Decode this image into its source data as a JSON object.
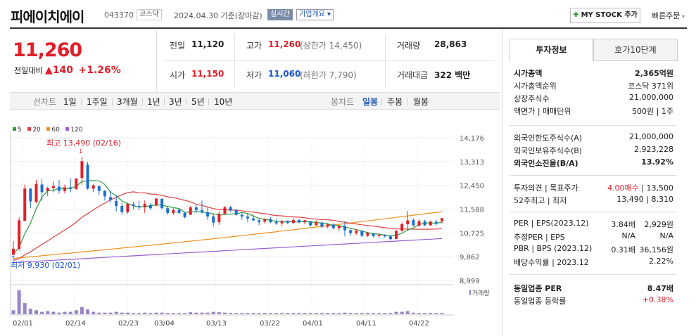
{
  "header": {
    "name": "피에이치에이",
    "code": "043370",
    "market_badge": "코스닥",
    "date_text": "2024.04.30  기준(장마감)",
    "live_badge": "실시간",
    "info_badge": "기업개요 ▾",
    "mystock_label": "MY STOCK 추가",
    "quick_order": "빠른주문"
  },
  "price": {
    "current": "11,260",
    "change_label": "전일대비",
    "change_value": "▲140",
    "change_pct": "+1.26%"
  },
  "summary": {
    "prev_label": "전일",
    "prev": "11,120",
    "high_label": "고가",
    "high": "11,260",
    "upper_limit": "(상한가 14,450)",
    "volume_label": "거래량",
    "volume": "28,863",
    "open_label": "시가",
    "open": "11,150",
    "low_label": "저가",
    "low": "11,060",
    "lower_limit": "(하한가 7,790)",
    "amount_label": "거래대금",
    "amount": "322 백만"
  },
  "toolbar": {
    "line_chart": "선차트",
    "periods": [
      "1일",
      "1주일",
      "3개월",
      "1년",
      "3년",
      "5년",
      "10년"
    ],
    "candle_chart": "봉차트",
    "candle_periods": [
      "일봉",
      "주봉",
      "월봉"
    ]
  },
  "legend": {
    "ma5": "5",
    "ma20": "20",
    "ma60": "60",
    "ma120": "120",
    "colors": {
      "ma5": "#2e9e3e",
      "ma20": "#e04040",
      "ma60": "#f0901a",
      "ma120": "#9a5fcf"
    }
  },
  "chart_data": {
    "type": "candlestick",
    "y_ticks": [
      "14,176",
      "13,313",
      "12,450",
      "11,588",
      "10,725",
      "9,862",
      "8,999"
    ],
    "x_ticks": [
      "02/01",
      "02/14",
      "02/23",
      "03/04",
      "03/13",
      "03/22",
      "04/01",
      "04/11",
      "04/22"
    ],
    "high_annotation": "최고 13,490 (02/16)",
    "low_annotation": "최저 9,930 (02/01)",
    "volume_label": "거래량",
    "candles": [
      [
        9930,
        10420,
        9930,
        10150
      ],
      [
        10150,
        11280,
        10080,
        11180
      ],
      [
        11160,
        12480,
        11150,
        12330
      ],
      [
        12330,
        12350,
        11620,
        11870
      ],
      [
        11850,
        12650,
        11800,
        12500
      ],
      [
        12480,
        12670,
        11900,
        12200
      ],
      [
        12250,
        12400,
        12060,
        12350
      ],
      [
        12350,
        12600,
        12200,
        12420
      ],
      [
        12400,
        12650,
        12150,
        12250
      ],
      [
        12240,
        12480,
        12150,
        12380
      ],
      [
        12380,
        12700,
        12200,
        12320
      ],
      [
        12320,
        12700,
        12290,
        12700
      ],
      [
        12720,
        13490,
        12480,
        13330
      ],
      [
        13200,
        13300,
        12300,
        12330
      ],
      [
        12330,
        12500,
        12200,
        12450
      ],
      [
        12420,
        12450,
        12100,
        12250
      ],
      [
        12250,
        12280,
        11900,
        12050
      ],
      [
        12020,
        12250,
        11820,
        11920
      ],
      [
        11880,
        12100,
        11500,
        11700
      ],
      [
        11700,
        11820,
        11380,
        11480
      ],
      [
        11480,
        11820,
        11420,
        11780
      ],
      [
        11760,
        11850,
        11580,
        11700
      ],
      [
        11700,
        11900,
        11550,
        11650
      ],
      [
        11650,
        11900,
        11450,
        11780
      ],
      [
        11740,
        11800,
        11560,
        11620
      ],
      [
        11720,
        11980,
        11680,
        11970
      ],
      [
        11960,
        11990,
        11580,
        11620
      ],
      [
        11620,
        11700,
        11380,
        11450
      ],
      [
        11450,
        11620,
        11380,
        11550
      ],
      [
        11560,
        11600,
        11400,
        11450
      ],
      [
        11450,
        11500,
        11250,
        11300
      ],
      [
        11380,
        11700,
        11380,
        11650
      ],
      [
        11650,
        11750,
        11450,
        11550
      ],
      [
        11550,
        11900,
        11420,
        11470
      ],
      [
        11470,
        11660,
        11200,
        11320
      ],
      [
        11320,
        11400,
        10950,
        11100
      ],
      [
        11120,
        11500,
        11020,
        11420
      ],
      [
        11420,
        11700,
        11380,
        11650
      ],
      [
        11650,
        11700,
        11480,
        11550
      ],
      [
        11550,
        11600,
        11350,
        11380
      ],
      [
        11380,
        11450,
        11200,
        11320
      ],
      [
        11320,
        11420,
        11120,
        11250
      ],
      [
        11250,
        11380,
        11150,
        11180
      ],
      [
        11180,
        11260,
        11000,
        11120
      ],
      [
        11130,
        11250,
        11060,
        11230
      ],
      [
        11220,
        11300,
        11080,
        11120
      ],
      [
        11120,
        11230,
        11020,
        11070
      ],
      [
        11070,
        11200,
        10980,
        11150
      ],
      [
        11160,
        11180,
        11040,
        11090
      ],
      [
        11090,
        11260,
        11050,
        11190
      ],
      [
        11190,
        11230,
        11070,
        11110
      ],
      [
        11110,
        11200,
        11030,
        11180
      ],
      [
        11150,
        11160,
        10950,
        11000
      ],
      [
        11000,
        11180,
        10980,
        11100
      ],
      [
        11100,
        11150,
        10900,
        10950
      ],
      [
        10950,
        11080,
        10900,
        11030
      ],
      [
        11030,
        11080,
        10850,
        10900
      ],
      [
        10900,
        11000,
        10800,
        10980
      ],
      [
        10980,
        11150,
        10600,
        10820
      ],
      [
        10820,
        10860,
        10620,
        10720
      ],
      [
        10720,
        10870,
        10650,
        10800
      ],
      [
        10800,
        10820,
        10560,
        10620
      ],
      [
        10620,
        10760,
        10580,
        10730
      ],
      [
        10700,
        10720,
        10560,
        10610
      ],
      [
        10610,
        10700,
        10550,
        10650
      ],
      [
        10650,
        10680,
        10550,
        10600
      ],
      [
        10600,
        10630,
        10450,
        10500
      ],
      [
        10500,
        10820,
        10500,
        10800
      ],
      [
        10800,
        11100,
        10770,
        11040
      ],
      [
        11040,
        11520,
        10800,
        11180
      ],
      [
        11190,
        11250,
        10950,
        11000
      ],
      [
        10980,
        11230,
        10980,
        11150
      ],
      [
        11150,
        11200,
        10980,
        11000
      ],
      [
        11000,
        11180,
        10980,
        11130
      ],
      [
        11130,
        11200,
        11000,
        11060
      ],
      [
        11150,
        11260,
        11060,
        11260
      ]
    ],
    "volumes": [
      5,
      30,
      14,
      7,
      5,
      3,
      4,
      3,
      2,
      3,
      3,
      5,
      9,
      6,
      3,
      2,
      2,
      2,
      3,
      2,
      2,
      1.5,
      1.5,
      2,
      1.5,
      2,
      2,
      1.5,
      1.5,
      1.5,
      1.5,
      2.5,
      2,
      2,
      2,
      3,
      2.5,
      2,
      1.5,
      1.5,
      1.5,
      1.5,
      1.5,
      1.5,
      1.5,
      1.5,
      1.5,
      1.5,
      1.5,
      1.5,
      1.5,
      1.5,
      1.5,
      1.5,
      1.5,
      1.5,
      1.5,
      1.5,
      2,
      1.5,
      1.5,
      1.5,
      1.5,
      1.5,
      1.5,
      1.5,
      1.5,
      3,
      3,
      4,
      2,
      1.5,
      1.5,
      1.5,
      1.5,
      1.5
    ],
    "ylim": [
      8999,
      14176
    ]
  },
  "investment": {
    "tab_active": "투자정보",
    "tab_other": "호가10단계",
    "rows1": [
      {
        "label": "시가총액",
        "value": "2,365억원"
      },
      {
        "label": "시가총액순위",
        "value": "코스닥 371위"
      },
      {
        "label": "상장주식수",
        "value": "21,000,000"
      },
      {
        "label": "액면가 | 매매단위",
        "value": "500원  |  1주"
      }
    ],
    "rows2": [
      {
        "label": "외국인한도주식수(A)",
        "value": "21,000,000"
      },
      {
        "label": "외국인보유주식수(B)",
        "value": "2,923,228"
      },
      {
        "label": "외국인소진율(B/A)",
        "value": "13.92%"
      }
    ],
    "rows3": [
      {
        "label": "투자의견  |  목표주가",
        "value_red": "4.00매수",
        "value": "13,500"
      },
      {
        "label": "52주최고  |  최저",
        "value": "13,490  |  8,310"
      }
    ],
    "rows4": [
      {
        "label": "PER | EPS(2023.12)",
        "v1": "3.84배",
        "v2": "2,929원"
      },
      {
        "label": "추정PER | EPS",
        "v1": "N/A",
        "v2": "N/A"
      },
      {
        "label": "PBR | BPS (2023.12)",
        "v1": "0.31배",
        "v2": "36,156원"
      },
      {
        "label": "배당수익률 | 2023.12",
        "v1": "",
        "v2": "2.22%"
      }
    ],
    "rows5": [
      {
        "label": "동일업종 PER",
        "value": "8.47배"
      },
      {
        "label": "동일업종 등락률",
        "value": "+0.38%"
      }
    ]
  }
}
